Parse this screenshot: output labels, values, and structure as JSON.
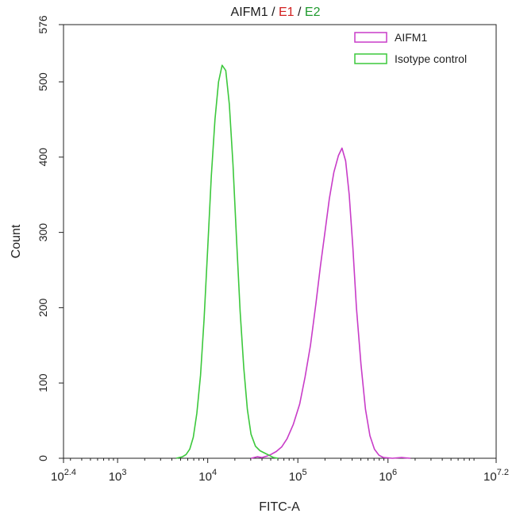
{
  "chart_data": {
    "type": "line",
    "title": {
      "parts": [
        {
          "text": "AIFM1",
          "color": "#1a1a1a"
        },
        {
          "text": " / ",
          "color": "#1a1a1a"
        },
        {
          "text": "E1",
          "color": "#d22020"
        },
        {
          "text": " / ",
          "color": "#1a1a1a"
        },
        {
          "text": "E2",
          "color": "#1f9a2e"
        }
      ]
    },
    "xlabel": "FITC-A",
    "ylabel": "Count",
    "x_scale": "log10",
    "xlim": [
      2.4,
      7.2
    ],
    "ylim": [
      0,
      576
    ],
    "x_ticks": [
      {
        "exp": 2.4,
        "base": "10",
        "sup": "2.4"
      },
      {
        "exp": 3,
        "base": "10",
        "sup": "3"
      },
      {
        "exp": 4,
        "base": "10",
        "sup": "4"
      },
      {
        "exp": 5,
        "base": "10",
        "sup": "5"
      },
      {
        "exp": 6,
        "base": "10",
        "sup": "6"
      },
      {
        "exp": 7.2,
        "base": "10",
        "sup": "7.2"
      }
    ],
    "y_ticks": [
      "0",
      "100",
      "200",
      "300",
      "400",
      "500",
      "576"
    ],
    "legend_position": "top-right",
    "series": [
      {
        "name": "AIFM1",
        "color": "#c83cc8",
        "points": [
          [
            4.48,
            0
          ],
          [
            4.55,
            2
          ],
          [
            4.6,
            1
          ],
          [
            4.66,
            3
          ],
          [
            4.7,
            5
          ],
          [
            4.76,
            9
          ],
          [
            4.82,
            15
          ],
          [
            4.88,
            26
          ],
          [
            4.95,
            45
          ],
          [
            5.02,
            72
          ],
          [
            5.08,
            108
          ],
          [
            5.14,
            150
          ],
          [
            5.2,
            205
          ],
          [
            5.25,
            255
          ],
          [
            5.3,
            300
          ],
          [
            5.35,
            345
          ],
          [
            5.4,
            380
          ],
          [
            5.45,
            402
          ],
          [
            5.49,
            412
          ],
          [
            5.53,
            395
          ],
          [
            5.57,
            350
          ],
          [
            5.61,
            280
          ],
          [
            5.65,
            200
          ],
          [
            5.7,
            125
          ],
          [
            5.75,
            65
          ],
          [
            5.8,
            30
          ],
          [
            5.85,
            12
          ],
          [
            5.9,
            4
          ],
          [
            5.95,
            1
          ],
          [
            6.05,
            0
          ],
          [
            6.15,
            1
          ],
          [
            6.25,
            0
          ]
        ]
      },
      {
        "name": "Isotype control",
        "color": "#3cc83c",
        "points": [
          [
            3.65,
            0
          ],
          [
            3.72,
            2
          ],
          [
            3.76,
            5
          ],
          [
            3.8,
            12
          ],
          [
            3.84,
            28
          ],
          [
            3.88,
            60
          ],
          [
            3.92,
            110
          ],
          [
            3.96,
            185
          ],
          [
            4.0,
            280
          ],
          [
            4.04,
            375
          ],
          [
            4.08,
            450
          ],
          [
            4.12,
            500
          ],
          [
            4.16,
            522
          ],
          [
            4.2,
            515
          ],
          [
            4.24,
            470
          ],
          [
            4.28,
            390
          ],
          [
            4.32,
            290
          ],
          [
            4.36,
            195
          ],
          [
            4.4,
            120
          ],
          [
            4.44,
            65
          ],
          [
            4.48,
            32
          ],
          [
            4.53,
            16
          ],
          [
            4.58,
            10
          ],
          [
            4.63,
            7
          ],
          [
            4.68,
            4
          ],
          [
            4.73,
            1
          ],
          [
            4.78,
            0
          ]
        ]
      }
    ]
  }
}
